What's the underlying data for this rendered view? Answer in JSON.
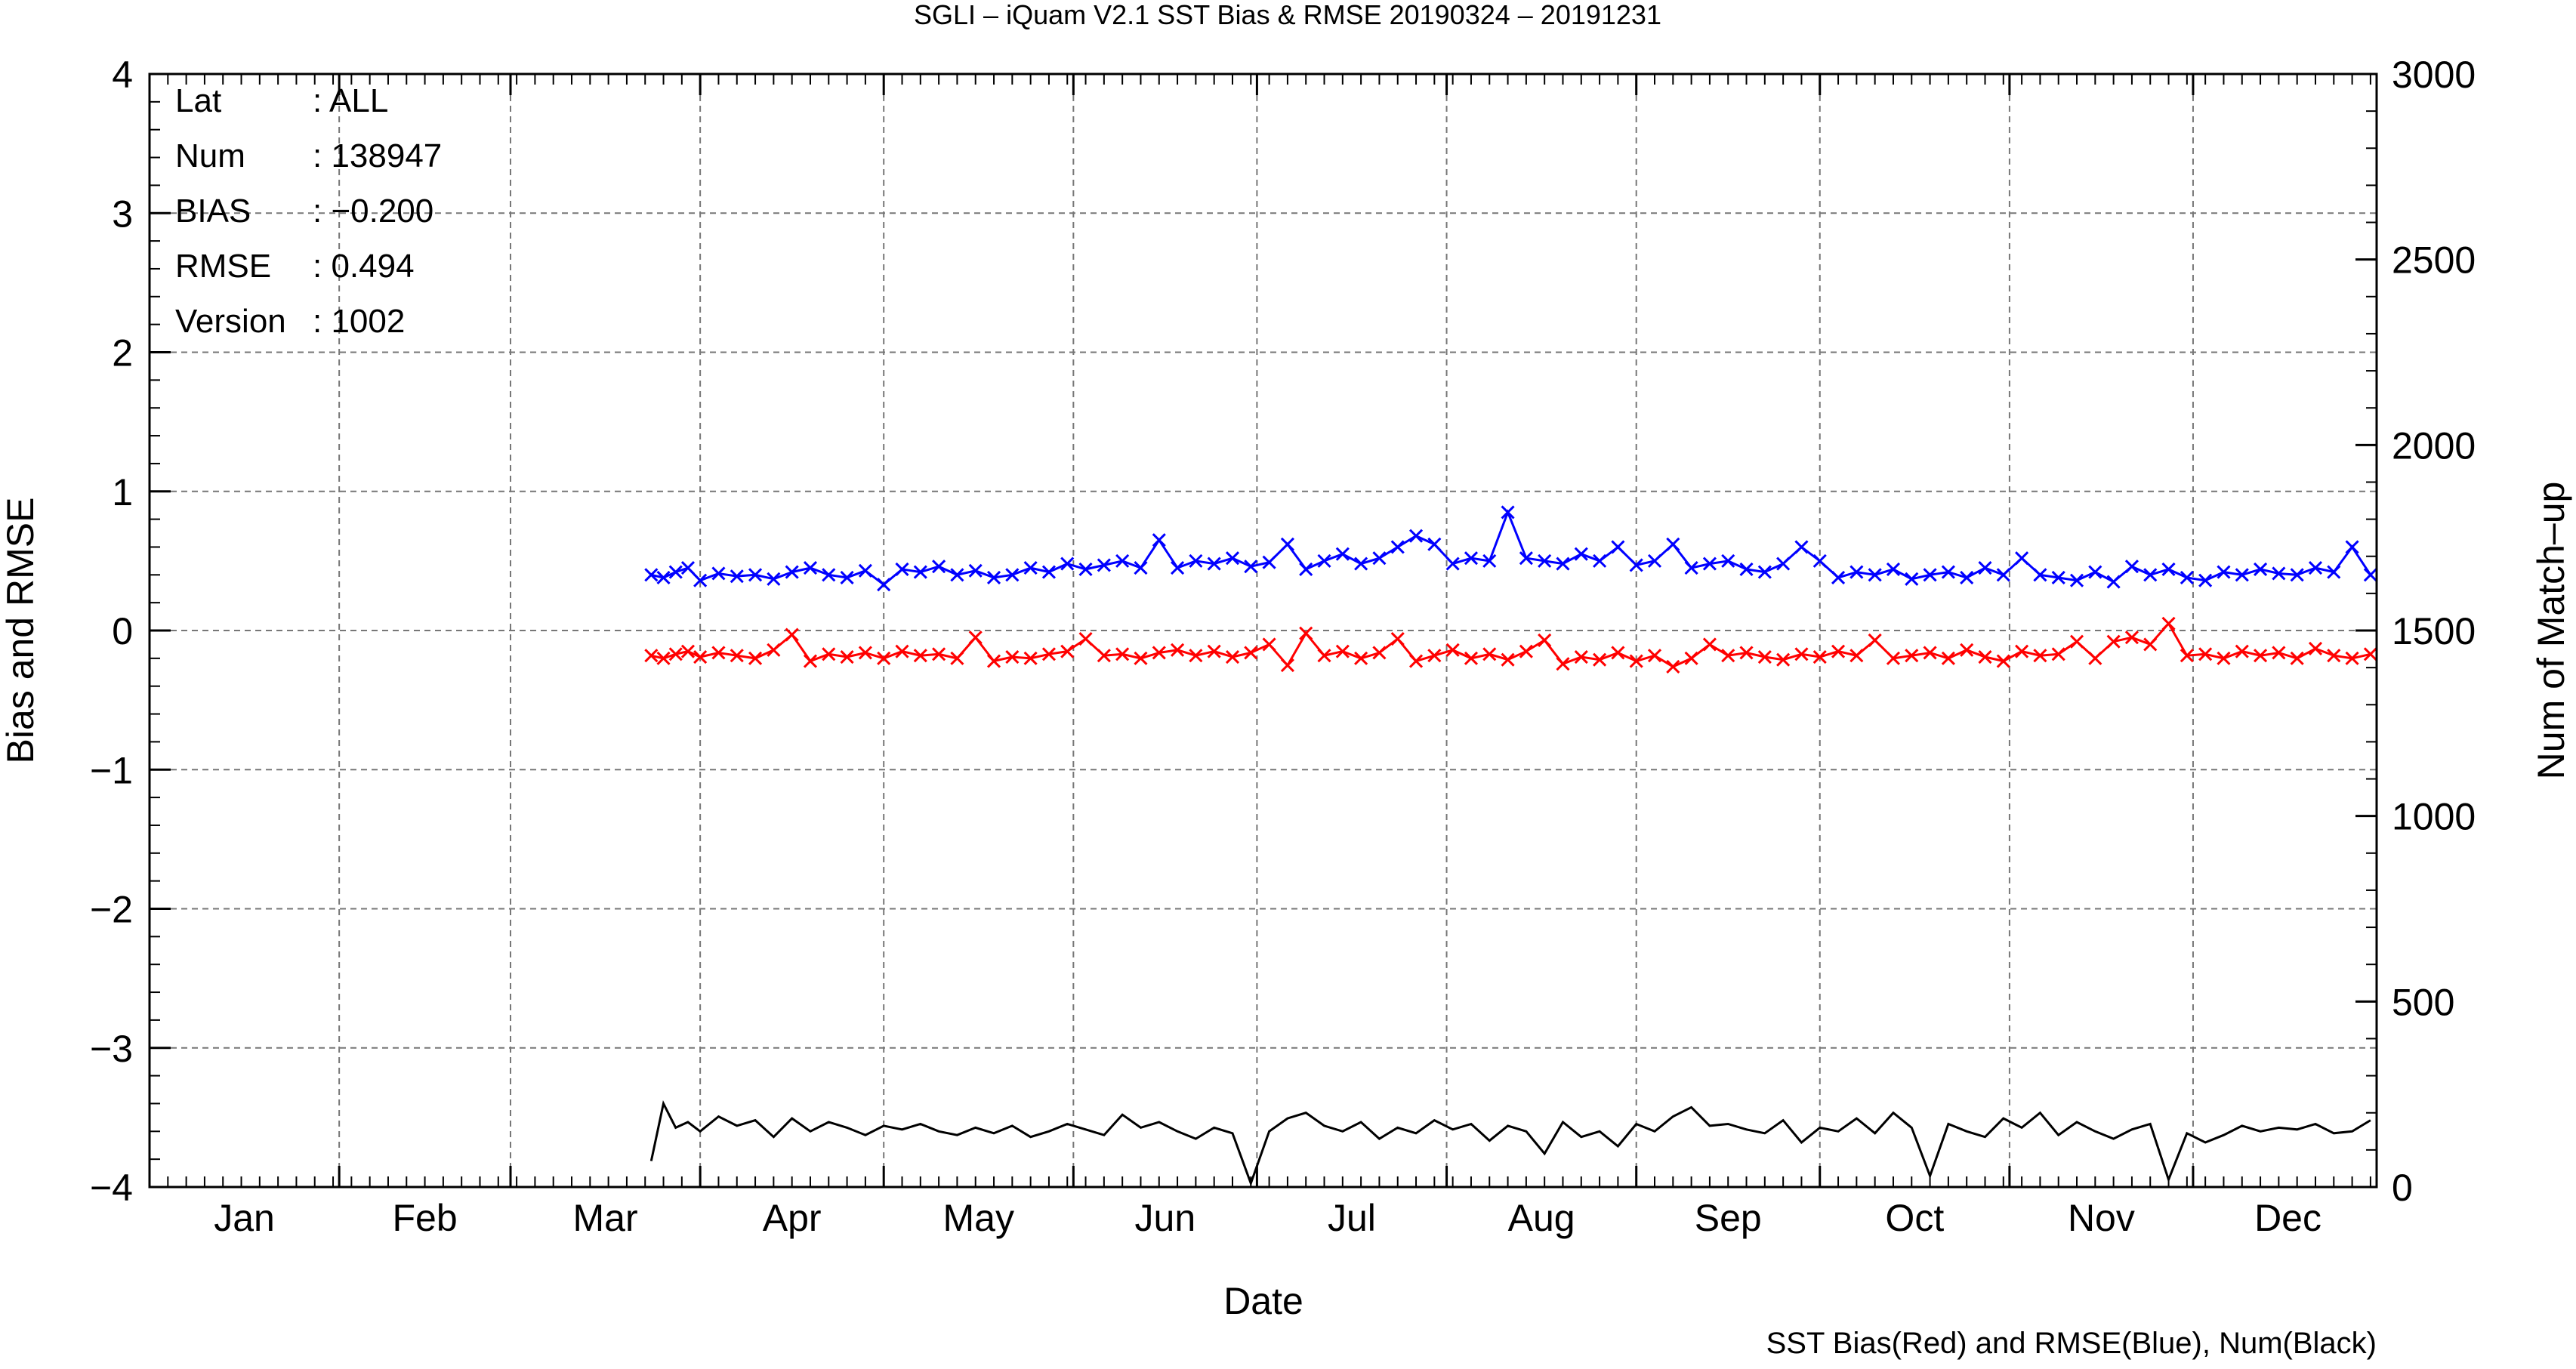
{
  "chart_data": {
    "type": "line",
    "title": "SGLI – iQuam V2.1 SST Bias & RMSE 20190324 – 20191231",
    "xlabel": "Date",
    "ylabel_left": "Bias and RMSE",
    "ylabel_right": "Num of Match–up",
    "footnote": "SST Bias(Red) and RMSE(Blue), Num(Black)",
    "x_unit": "day_of_year",
    "xlim": [
      1,
      365
    ],
    "ylim_left": [
      -4,
      4
    ],
    "ylim_right": [
      0,
      3000
    ],
    "yticks_left": [
      4,
      3,
      2,
      1,
      0,
      -1,
      -2,
      -3,
      -4
    ],
    "ytick_labels_left": [
      "4",
      "3",
      "2",
      "1",
      "0",
      "−1",
      "−2",
      "−3",
      "−4"
    ],
    "yticks_right": [
      3000,
      2500,
      2000,
      1500,
      1000,
      500,
      0
    ],
    "ytick_labels_right": [
      "3000",
      "2500",
      "2000",
      "1500",
      "1000",
      "500",
      "0"
    ],
    "month_labels": [
      "Jan",
      "Feb",
      "Mar",
      "Apr",
      "May",
      "Jun",
      "Jul",
      "Aug",
      "Sep",
      "Oct",
      "Nov",
      "Dec"
    ],
    "grid": true,
    "stats": [
      {
        "key": "Lat",
        "value": ": ALL"
      },
      {
        "key": "Num",
        "value": ": 138947"
      },
      {
        "key": "BIAS",
        "value": ": −0.200"
      },
      {
        "key": "RMSE",
        "value": ": 0.494"
      },
      {
        "key": "Version",
        "value": ": 1002"
      }
    ],
    "series": [
      {
        "name": "BIAS",
        "color": "#ff0000",
        "axis": "left",
        "marker": "x",
        "x": [
          83,
          85,
          87,
          89,
          91,
          94,
          97,
          100,
          103,
          106,
          109,
          112,
          115,
          118,
          121,
          124,
          127,
          130,
          133,
          136,
          139,
          142,
          145,
          148,
          151,
          154,
          157,
          160,
          163,
          166,
          169,
          172,
          175,
          178,
          181,
          184,
          187,
          190,
          193,
          196,
          199,
          202,
          205,
          208,
          211,
          214,
          217,
          220,
          223,
          226,
          229,
          232,
          235,
          238,
          241,
          244,
          247,
          250,
          253,
          256,
          259,
          262,
          265,
          268,
          271,
          274,
          277,
          280,
          283,
          286,
          289,
          292,
          295,
          298,
          301,
          304,
          307,
          310,
          313,
          316,
          319,
          322,
          325,
          328,
          331,
          334,
          337,
          340,
          343,
          346,
          349,
          352,
          355,
          358,
          361,
          364
        ],
        "values": [
          -0.18,
          -0.2,
          -0.17,
          -0.15,
          -0.19,
          -0.16,
          -0.18,
          -0.2,
          -0.14,
          -0.03,
          -0.22,
          -0.17,
          -0.19,
          -0.16,
          -0.2,
          -0.15,
          -0.18,
          -0.17,
          -0.2,
          -0.05,
          -0.22,
          -0.19,
          -0.2,
          -0.17,
          -0.15,
          -0.06,
          -0.18,
          -0.17,
          -0.2,
          -0.16,
          -0.14,
          -0.18,
          -0.15,
          -0.19,
          -0.16,
          -0.1,
          -0.25,
          -0.02,
          -0.18,
          -0.15,
          -0.2,
          -0.16,
          -0.06,
          -0.22,
          -0.18,
          -0.14,
          -0.2,
          -0.17,
          -0.21,
          -0.15,
          -0.07,
          -0.24,
          -0.19,
          -0.21,
          -0.16,
          -0.22,
          -0.18,
          -0.26,
          -0.2,
          -0.1,
          -0.18,
          -0.16,
          -0.19,
          -0.21,
          -0.17,
          -0.19,
          -0.15,
          -0.18,
          -0.07,
          -0.2,
          -0.18,
          -0.16,
          -0.2,
          -0.14,
          -0.19,
          -0.22,
          -0.15,
          -0.18,
          -0.17,
          -0.08,
          -0.2,
          -0.08,
          -0.05,
          -0.1,
          0.05,
          -0.18,
          -0.17,
          -0.2,
          -0.15,
          -0.18,
          -0.16,
          -0.2,
          -0.13,
          -0.18,
          -0.2,
          -0.17
        ]
      },
      {
        "name": "RMSE",
        "color": "#0000ff",
        "axis": "left",
        "marker": "x",
        "x": [
          83,
          85,
          87,
          89,
          91,
          94,
          97,
          100,
          103,
          106,
          109,
          112,
          115,
          118,
          121,
          124,
          127,
          130,
          133,
          136,
          139,
          142,
          145,
          148,
          151,
          154,
          157,
          160,
          163,
          166,
          169,
          172,
          175,
          178,
          181,
          184,
          187,
          190,
          193,
          196,
          199,
          202,
          205,
          208,
          211,
          214,
          217,
          220,
          223,
          226,
          229,
          232,
          235,
          238,
          241,
          244,
          247,
          250,
          253,
          256,
          259,
          262,
          265,
          268,
          271,
          274,
          277,
          280,
          283,
          286,
          289,
          292,
          295,
          298,
          301,
          304,
          307,
          310,
          313,
          316,
          319,
          322,
          325,
          328,
          331,
          334,
          337,
          340,
          343,
          346,
          349,
          352,
          355,
          358,
          361,
          364
        ],
        "values": [
          0.4,
          0.38,
          0.42,
          0.45,
          0.36,
          0.41,
          0.39,
          0.4,
          0.37,
          0.42,
          0.45,
          0.4,
          0.38,
          0.43,
          0.33,
          0.44,
          0.42,
          0.46,
          0.4,
          0.43,
          0.38,
          0.4,
          0.45,
          0.42,
          0.48,
          0.44,
          0.47,
          0.5,
          0.45,
          0.65,
          0.45,
          0.5,
          0.48,
          0.52,
          0.46,
          0.49,
          0.62,
          0.44,
          0.5,
          0.55,
          0.48,
          0.52,
          0.6,
          0.68,
          0.62,
          0.48,
          0.52,
          0.5,
          0.85,
          0.52,
          0.5,
          0.48,
          0.55,
          0.5,
          0.6,
          0.47,
          0.5,
          0.62,
          0.45,
          0.48,
          0.5,
          0.44,
          0.42,
          0.48,
          0.6,
          0.5,
          0.38,
          0.42,
          0.4,
          0.44,
          0.37,
          0.4,
          0.42,
          0.38,
          0.45,
          0.4,
          0.52,
          0.4,
          0.38,
          0.36,
          0.42,
          0.35,
          0.46,
          0.4,
          0.44,
          0.38,
          0.36,
          0.42,
          0.4,
          0.44,
          0.41,
          0.4,
          0.45,
          0.42,
          0.6,
          0.4
        ]
      },
      {
        "name": "Num",
        "color": "#000000",
        "axis": "right",
        "marker": "none",
        "x": [
          83,
          85,
          87,
          89,
          91,
          94,
          97,
          100,
          103,
          106,
          109,
          112,
          115,
          118,
          121,
          124,
          127,
          130,
          133,
          136,
          139,
          142,
          145,
          148,
          151,
          154,
          157,
          160,
          163,
          166,
          169,
          172,
          175,
          178,
          181,
          184,
          187,
          190,
          193,
          196,
          199,
          202,
          205,
          208,
          211,
          214,
          217,
          220,
          223,
          226,
          229,
          232,
          235,
          238,
          241,
          244,
          247,
          250,
          253,
          256,
          259,
          262,
          265,
          268,
          271,
          274,
          277,
          280,
          283,
          286,
          289,
          292,
          295,
          298,
          301,
          304,
          307,
          310,
          313,
          316,
          319,
          322,
          325,
          328,
          331,
          334,
          337,
          340,
          343,
          346,
          349,
          352,
          355,
          358,
          361,
          364
        ],
        "values": [
          70,
          225,
          160,
          175,
          150,
          190,
          165,
          180,
          135,
          185,
          150,
          175,
          160,
          140,
          165,
          155,
          170,
          150,
          140,
          160,
          145,
          165,
          135,
          150,
          170,
          155,
          140,
          195,
          160,
          175,
          150,
          130,
          160,
          145,
          10,
          150,
          185,
          200,
          165,
          150,
          175,
          130,
          160,
          145,
          180,
          155,
          170,
          125,
          165,
          150,
          90,
          175,
          135,
          150,
          110,
          170,
          150,
          190,
          215,
          165,
          170,
          155,
          145,
          180,
          120,
          160,
          150,
          185,
          145,
          200,
          160,
          30,
          170,
          150,
          135,
          185,
          160,
          200,
          140,
          175,
          150,
          130,
          155,
          170,
          20,
          145,
          120,
          140,
          165,
          150,
          160,
          155,
          170,
          145,
          150,
          180
        ]
      }
    ]
  }
}
